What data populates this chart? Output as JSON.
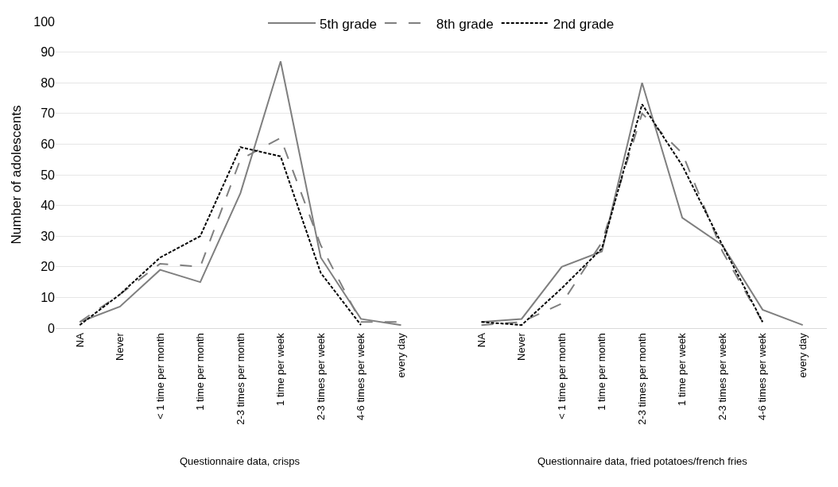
{
  "chart_data": {
    "type": "line",
    "ylabel": "Number of adolescents",
    "categories": [
      "NA",
      "Never",
      "< 1 time per month",
      "1 time per month",
      "2-3 times per month",
      "1 time per week",
      "2-3 times per week",
      "4-6 times per week",
      "every day",
      null,
      "NA",
      "Never",
      "< 1 time per month",
      "1 time per month",
      "2-3 times per month",
      "1 time per week",
      "2-3 times per week",
      "4-6 times per week",
      "every day"
    ],
    "series": [
      {
        "name": "5th grade",
        "color": "#7f7f7f",
        "line_style": "solid",
        "values": [
          2,
          7,
          19,
          15,
          44,
          87,
          23,
          3,
          1,
          null,
          2,
          3,
          20,
          25,
          80,
          36,
          27,
          6,
          1
        ]
      },
      {
        "name": "8th grade",
        "color": "#7f7f7f",
        "line_style": "dashed",
        "values": [
          2,
          11,
          21,
          20,
          55,
          62,
          27,
          2,
          2,
          null,
          1,
          2,
          8,
          28,
          70,
          57,
          25,
          2,
          null
        ]
      },
      {
        "name": "2nd grade",
        "color": "#000000",
        "line_style": "dotted",
        "values": [
          1,
          11,
          23,
          30,
          59,
          56,
          18,
          1,
          null,
          null,
          2,
          1,
          13,
          26,
          73,
          53,
          27,
          2,
          null
        ]
      }
    ],
    "ylim": [
      0,
      100
    ],
    "yticks": [
      0,
      10,
      20,
      30,
      40,
      50,
      60,
      70,
      80,
      90,
      100
    ],
    "grid": "y",
    "legend": "top",
    "marker": "none",
    "annotations": [
      "Questionnaire data, crisps",
      "Questionnaire data, fried potatoes/french fries"
    ]
  }
}
